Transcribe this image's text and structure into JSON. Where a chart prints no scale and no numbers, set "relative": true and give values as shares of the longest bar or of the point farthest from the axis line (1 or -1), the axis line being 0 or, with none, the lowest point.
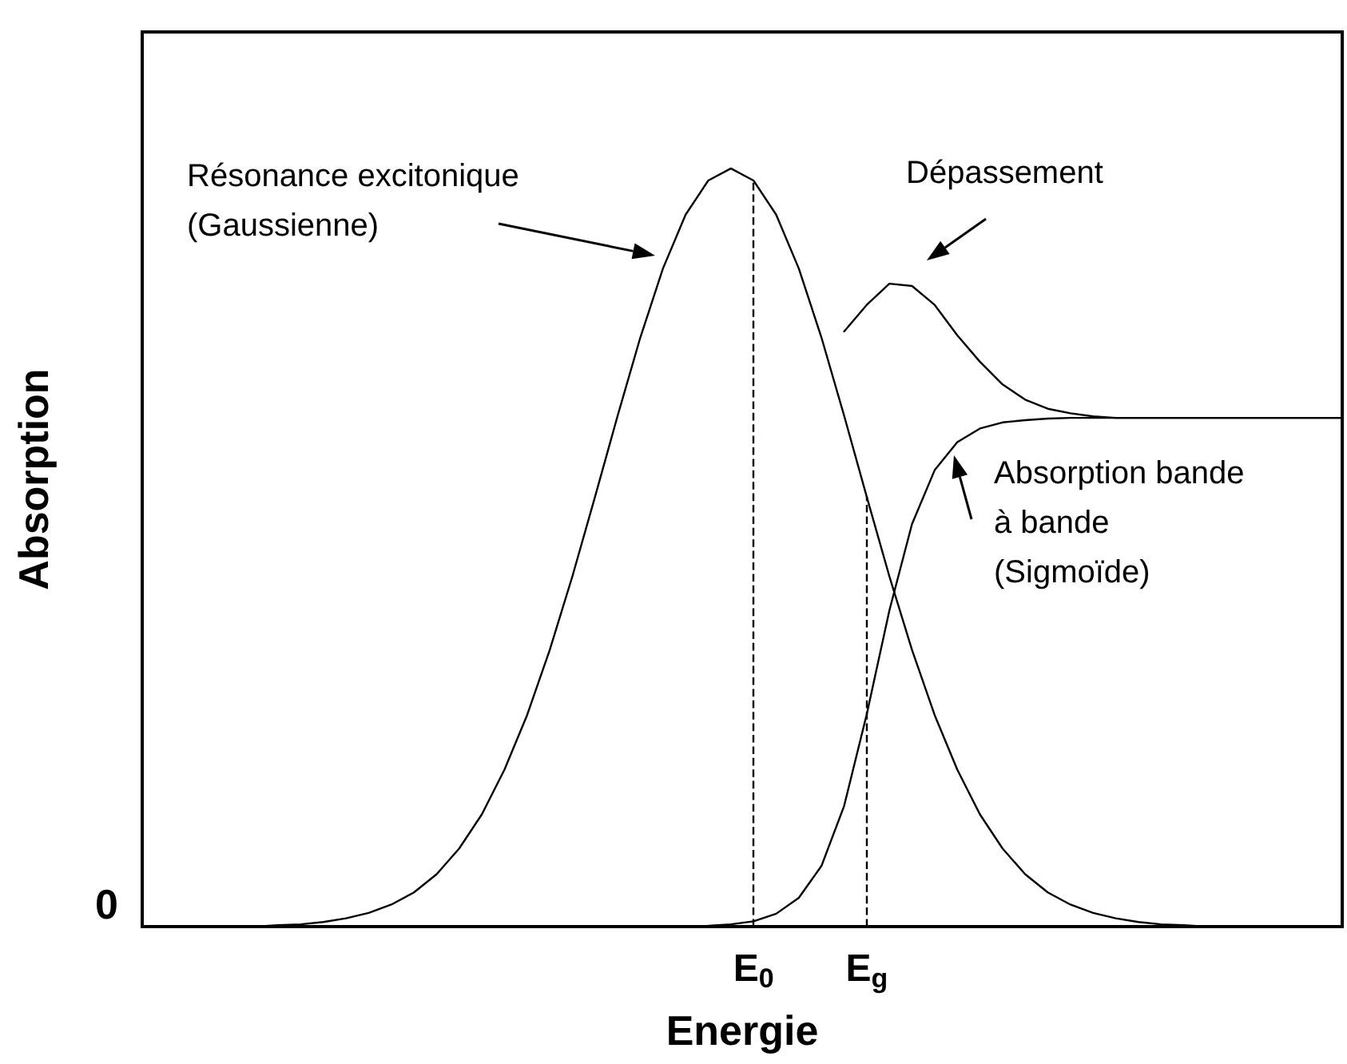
{
  "chart_data": {
    "type": "line",
    "relative": true,
    "xlabel": "Energie",
    "ylabel": "Absorption",
    "categories": [
      null,
      null,
      null,
      null,
      null,
      null,
      null,
      null,
      null,
      null,
      null,
      null,
      null,
      null,
      null,
      null,
      null,
      null,
      null,
      null,
      null,
      null,
      null,
      null,
      null,
      null,
      null,
      "E$_{0}$",
      null,
      null,
      null,
      null,
      "E$_{g}$",
      null,
      null,
      null,
      null,
      null,
      null,
      null,
      null,
      null,
      null,
      null,
      null,
      null,
      null,
      null,
      null,
      null,
      null,
      null,
      null,
      null
    ],
    "series": [
      {
        "color": "#000000",
        "values": [
          0,
          0,
          0,
          0,
          0,
          0,
          0.002,
          0.003,
          0.006,
          0.011,
          0.018,
          0.029,
          0.045,
          0.069,
          0.103,
          0.148,
          0.207,
          0.279,
          0.365,
          0.462,
          0.567,
          0.674,
          0.777,
          0.868,
          0.939,
          0.984,
          1,
          0.984,
          0.939,
          0.868,
          0.777,
          0.674,
          0.567,
          0.462,
          0.365,
          0.279,
          0.207,
          0.148,
          0.103,
          0.069,
          0.045,
          0.029,
          0.018,
          0.011,
          0.006,
          0.003,
          0.002,
          0,
          0,
          0,
          0,
          0,
          0,
          0
        ]
      },
      {
        "color": "#000000",
        "values": [
          0,
          0,
          0,
          0,
          0,
          0,
          0,
          0,
          0,
          0,
          0,
          0,
          0,
          0,
          0,
          0,
          0,
          0,
          0,
          0,
          0,
          0,
          0,
          0,
          0,
          0.001,
          0.003,
          0.007,
          0.017,
          0.038,
          0.08,
          0.159,
          0.28,
          0.417,
          0.531,
          0.602,
          0.639,
          0.657,
          0.665,
          0.668,
          0.67,
          0.671,
          0.671,
          0.671,
          0.671,
          0.671,
          0.671,
          0.671,
          0.671,
          0.671,
          0.671,
          0.671,
          0.671,
          0.671
        ]
      },
      {
        "color": "#000000",
        "values": [
          null,
          null,
          null,
          null,
          null,
          null,
          null,
          null,
          null,
          null,
          null,
          null,
          null,
          null,
          null,
          null,
          null,
          null,
          null,
          null,
          null,
          null,
          null,
          null,
          null,
          null,
          null,
          null,
          null,
          null,
          null,
          0.785,
          0.82,
          0.848,
          0.845,
          0.82,
          0.78,
          0.745,
          0.715,
          0.695,
          0.683,
          0.677,
          0.673,
          0.671,
          0.671,
          0.671,
          0.671,
          0.671,
          0.671,
          0.671,
          0.671,
          0.671,
          0.671,
          0.671
        ]
      }
    ],
    "ref_lines": [
      {
        "axis": "x",
        "value": "E$_{0}$",
        "line_style": "dashed",
        "color": "#000000"
      },
      {
        "axis": "x",
        "value": "E$_{g}$",
        "line_style": "dashed",
        "color": "#000000"
      }
    ],
    "annotations": [
      "0",
      "Résonance excitonique\n(Gaussienne)",
      "Dépassement",
      "Absorption bande\nà bande\n(Sigmoïde)"
    ],
    "marker": "none",
    "line_style": "solid",
    "grid": false
  }
}
